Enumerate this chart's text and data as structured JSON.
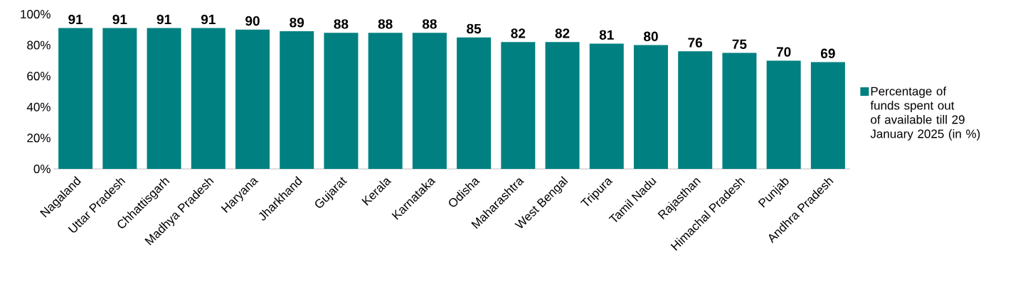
{
  "chart_data": {
    "type": "bar",
    "categories": [
      "Nagaland",
      "Uttar Pradesh",
      "Chhattisgarh",
      "Madhya Pradesh",
      "Haryana",
      "Jharkhand",
      "Gujarat",
      "Kerala",
      "Karnataka",
      "Odisha",
      "Maharashtra",
      "West Bengal",
      "Tripura",
      "Tamil Nadu",
      "Rajasthan",
      "Himachal Pradesh",
      "Punjab",
      "Andhra Pradesh"
    ],
    "series": [
      {
        "name": "Percentage of funds spent out of available till 29 January 2025 (in %)",
        "color": "#008080",
        "values": [
          91,
          91,
          91,
          91,
          90,
          89,
          88,
          88,
          88,
          85,
          82,
          82,
          81,
          80,
          76,
          75,
          70,
          69
        ]
      }
    ],
    "ylim": [
      0,
      100
    ],
    "yticks": [
      {
        "value": 0,
        "label": "0%"
      },
      {
        "value": 20,
        "label": "20%"
      },
      {
        "value": 40,
        "label": "40%"
      },
      {
        "value": 60,
        "label": "60%"
      },
      {
        "value": 80,
        "label": "80%"
      },
      {
        "value": 100,
        "label": "100%"
      }
    ],
    "data_labels": true,
    "legend": "right"
  }
}
